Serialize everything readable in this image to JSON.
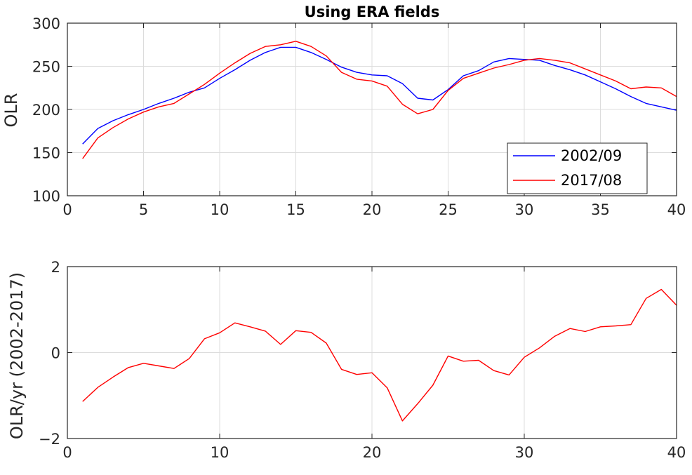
{
  "chart_data": [
    {
      "type": "line",
      "title": "Using ERA fields",
      "xlabel": "",
      "ylabel": "OLR",
      "xlim": [
        0,
        40
      ],
      "ylim": [
        100,
        300
      ],
      "xticks": [
        0,
        5,
        10,
        15,
        20,
        25,
        30,
        35,
        40
      ],
      "yticks": [
        100,
        150,
        200,
        250,
        300
      ],
      "grid": true,
      "legend_position": "bottom-right",
      "x": [
        1,
        2,
        3,
        4,
        5,
        6,
        7,
        8,
        9,
        10,
        11,
        12,
        13,
        14,
        15,
        16,
        17,
        18,
        19,
        20,
        21,
        22,
        23,
        24,
        25,
        26,
        27,
        28,
        29,
        30,
        31,
        32,
        33,
        34,
        35,
        36,
        37,
        38,
        39,
        40
      ],
      "series": [
        {
          "name": "2002/09",
          "color": "#0000ff",
          "values": [
            160,
            178,
            187,
            194,
            200,
            207,
            213,
            220,
            225,
            236,
            246,
            257,
            266,
            272,
            272,
            266,
            258,
            249,
            243,
            240,
            239,
            230,
            213,
            211,
            223,
            239,
            245,
            255,
            259,
            258,
            257,
            251,
            246,
            240,
            232,
            224,
            215,
            207,
            203,
            199
          ]
        },
        {
          "name": "2017/08",
          "color": "#ff0000",
          "values": [
            143,
            167,
            179,
            189,
            197,
            203,
            207,
            218,
            229,
            242,
            254,
            265,
            273,
            275,
            279,
            273,
            262,
            243,
            235,
            233,
            227,
            206,
            195,
            200,
            222,
            236,
            242,
            248,
            252,
            257,
            259,
            257,
            254,
            247,
            240,
            233,
            224,
            226,
            225,
            215
          ]
        }
      ]
    },
    {
      "type": "line",
      "title": "",
      "xlabel": "",
      "ylabel": "OLR/yr (2002-2017)",
      "xlim": [
        0,
        40
      ],
      "ylim": [
        -2,
        2
      ],
      "xticks": [
        0,
        10,
        20,
        30,
        40
      ],
      "yticks": [
        -2,
        0,
        2
      ],
      "grid": true,
      "x": [
        1,
        2,
        3,
        4,
        5,
        6,
        7,
        8,
        9,
        10,
        11,
        12,
        13,
        14,
        15,
        16,
        17,
        18,
        19,
        20,
        21,
        22,
        23,
        24,
        25,
        26,
        27,
        28,
        29,
        30,
        31,
        32,
        33,
        34,
        35,
        36,
        37,
        38,
        39,
        40
      ],
      "series": [
        {
          "color": "#ff0000",
          "values": [
            -1.14,
            -0.81,
            -0.57,
            -0.35,
            -0.25,
            -0.31,
            -0.37,
            -0.14,
            0.32,
            0.46,
            0.69,
            0.6,
            0.5,
            0.19,
            0.51,
            0.47,
            0.22,
            -0.39,
            -0.51,
            -0.47,
            -0.82,
            -1.59,
            -1.19,
            -0.76,
            -0.08,
            -0.2,
            -0.18,
            -0.42,
            -0.52,
            -0.11,
            0.11,
            0.38,
            0.56,
            0.49,
            0.6,
            0.62,
            0.65,
            1.26,
            1.47,
            1.1
          ]
        }
      ]
    }
  ]
}
